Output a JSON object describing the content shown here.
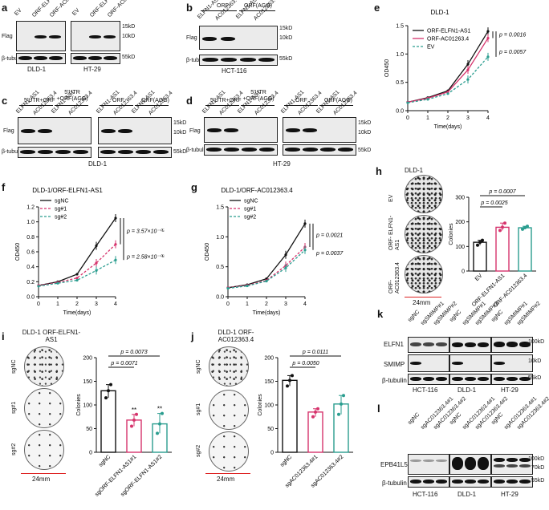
{
  "panels": {
    "a": {
      "letter": "a",
      "lanes": [
        "EV",
        "ORF-ELFN1-AS1",
        "ORF-AC012363.4",
        "EV",
        "ORF-ELFN1-AS1",
        "ORF-AC012363.4"
      ],
      "rows": [
        "Flag",
        "β-tubulin"
      ],
      "sizes": [
        "15kD",
        "10kD",
        "55kD"
      ],
      "cells": [
        "DLD-1",
        "HT-29"
      ]
    },
    "b": {
      "letter": "b",
      "groups": [
        "ORF",
        "ORF(AGG)"
      ],
      "lanes": [
        "ELFN1-AS1",
        "AC012363.4",
        "ELFN1-AS1",
        "AC012363.4"
      ],
      "rows": [
        "Flag",
        "β-tubulin"
      ],
      "sizes": [
        "15kD",
        "10kD",
        "55kD"
      ],
      "cell": "HCT-116"
    },
    "c": {
      "letter": "c",
      "groups": [
        "5'UTR+ORF",
        "5'UTR +ORF(AGG)",
        "ORF",
        "ORF(AGG)"
      ],
      "lanes": [
        "ELFN1-AS1",
        "AC012363.4",
        "ELFN1-AS1",
        "AC012363.4",
        "ELFN1-AS1",
        "AC012363.4",
        "ELFN1-AS1",
        "AC012363.4"
      ],
      "rows": [
        "Flag",
        "β-tubulin"
      ],
      "sizes": [
        "15kD",
        "10kD",
        "55kD"
      ],
      "cell": "DLD-1"
    },
    "d": {
      "letter": "d",
      "groups": [
        "5'UTR+ORF",
        "5'UTR +ORF(AGG)",
        "ORF",
        "ORF(AGG)"
      ],
      "lanes": [
        "ELFN1-AS1",
        "AC012363.4",
        "ELFN1-AS1",
        "AC012363.4",
        "ELFN1-AS1",
        "AC012363.4",
        "ELFN1-AS1",
        "AC012363.4"
      ],
      "rows": [
        "Flag",
        "β-tubulin"
      ],
      "sizes": [
        "15kD",
        "10kD",
        "55kD"
      ],
      "cell": "HT-29"
    },
    "h": {
      "letter": "h",
      "cell": "DLD-1",
      "dish_labels": [
        "EV",
        "ORF- ELFN1-AS1",
        "ORF- AC012363.4"
      ],
      "scale": "24mm"
    },
    "i": {
      "letter": "i",
      "title": "DLD-1 ORF-ELFN1-AS1",
      "dish_labels": [
        "sgNC",
        "sg#1",
        "sg#2"
      ],
      "scale": "24mm"
    },
    "j": {
      "letter": "j",
      "title": "DLD-1 ORF-AC012363.4",
      "dish_labels": [
        "sgNC",
        "sg#1",
        "sg#2"
      ],
      "scale": "24mm"
    },
    "k": {
      "letter": "k",
      "lanes": [
        "sgNC",
        "sgSMIMP#1",
        "sgSMIMP#2",
        "sgNC",
        "sgSMIMP#1",
        "sgSMIMP#2",
        "sgNC",
        "sgSMIMP#1",
        "sgSMIMP#2"
      ],
      "rows": [
        "ELFN1",
        "SMIMP",
        "β-tubulin"
      ],
      "sizes": [
        "100kD",
        "10kD",
        "55kD"
      ],
      "cells": [
        "HCT-116",
        "DLD-1",
        "HT-29"
      ]
    },
    "l": {
      "letter": "l",
      "lanes": [
        "sgNC",
        "sgAC012363.4#1",
        "sgAC012363.4#2",
        "sgNC",
        "sgAC012363.4#1",
        "sgAC012363.4#2",
        "sgNC",
        "sgAC012363.4#1",
        "sgAC012363.4#2"
      ],
      "rows": [
        "EPB41L5",
        "β-tubulin"
      ],
      "sizes": [
        "100kD",
        "70kD",
        "55kD"
      ],
      "cells": [
        "HCT-116",
        "DLD-1",
        "HT-29"
      ]
    },
    "e": {
      "letter": "e"
    },
    "f": {
      "letter": "f"
    },
    "g": {
      "letter": "g"
    }
  },
  "chart_data": [
    {
      "id": "e",
      "type": "line",
      "title": "DLD-1",
      "xlabel": "Time(days)",
      "ylabel": "OD450",
      "x": [
        0,
        1,
        2,
        3,
        4
      ],
      "xlim": [
        0,
        4
      ],
      "ylim": [
        0.0,
        1.5
      ],
      "yticks": [
        0.0,
        0.5,
        1.0,
        1.5
      ],
      "series": [
        {
          "name": "ORF-ELFN1-AS1",
          "values": [
            0.15,
            0.23,
            0.35,
            0.82,
            1.4
          ],
          "color": "#111111",
          "dash": "solid"
        },
        {
          "name": "ORF-AC01263.4",
          "values": [
            0.15,
            0.22,
            0.33,
            0.72,
            1.28
          ],
          "color": "#d6336c",
          "dash": "solid"
        },
        {
          "name": "EV",
          "values": [
            0.14,
            0.2,
            0.3,
            0.55,
            0.95
          ],
          "color": "#2a9d8f",
          "dash": "dashed"
        }
      ],
      "annotations": [
        "p = 0.0016",
        "p = 0.0057"
      ]
    },
    {
      "id": "f",
      "type": "line",
      "title": "DLD-1/ORF-ELFN1-AS1",
      "xlabel": "Time(days)",
      "ylabel": "OD450",
      "x": [
        0,
        1,
        2,
        3,
        4
      ],
      "xlim": [
        0,
        4
      ],
      "ylim": [
        0.0,
        1.2
      ],
      "yticks": [
        0.0,
        0.2,
        0.4,
        0.6,
        0.8,
        1.0,
        1.2
      ],
      "series": [
        {
          "name": "sgNC",
          "values": [
            0.15,
            0.2,
            0.3,
            0.68,
            1.05
          ],
          "color": "#111111",
          "dash": "solid"
        },
        {
          "name": "sg#1",
          "values": [
            0.15,
            0.19,
            0.25,
            0.45,
            0.7
          ],
          "color": "#d6336c",
          "dash": "dashed"
        },
        {
          "name": "sg#2",
          "values": [
            0.14,
            0.18,
            0.22,
            0.35,
            0.49
          ],
          "color": "#2a9d8f",
          "dash": "dashed"
        }
      ],
      "annotations": [
        "p = 3.57×10⁻⁰⁵",
        "p = 2.58×10⁻⁰⁶"
      ]
    },
    {
      "id": "g",
      "type": "line",
      "title": "DLD-1/ORF-AC012363.4",
      "xlabel": "Time(days)",
      "ylabel": "OD450",
      "x": [
        0,
        1,
        2,
        3,
        4
      ],
      "xlim": [
        0,
        4
      ],
      "ylim": [
        0.0,
        1.5
      ],
      "yticks": [
        0.0,
        0.5,
        1.0,
        1.5
      ],
      "series": [
        {
          "name": "sgNC",
          "values": [
            0.15,
            0.2,
            0.3,
            0.7,
            1.22
          ],
          "color": "#111111",
          "dash": "solid"
        },
        {
          "name": "sg#1",
          "values": [
            0.15,
            0.19,
            0.27,
            0.52,
            0.83
          ],
          "color": "#d6336c",
          "dash": "dashed"
        },
        {
          "name": "sg#2",
          "values": [
            0.14,
            0.18,
            0.26,
            0.48,
            0.78
          ],
          "color": "#2a9d8f",
          "dash": "dashed"
        }
      ],
      "annotations": [
        "p = 0.0021",
        "p = 0.0037"
      ]
    },
    {
      "id": "h",
      "type": "bar",
      "xlabel": "",
      "ylabel": "Colonies",
      "categories": [
        "EV",
        "ORF-ELFN1-AS1",
        "ORF-AC012363.4"
      ],
      "values": [
        117,
        178,
        176
      ],
      "colors": [
        "#111111",
        "#d6336c",
        "#2a9d8f"
      ],
      "points": [
        [
          105,
          117,
          125
        ],
        [
          165,
          178,
          195
        ],
        [
          170,
          176,
          182
        ]
      ],
      "ylim": [
        0,
        300
      ],
      "yticks": [
        0,
        100,
        200,
        300
      ],
      "annotations": [
        "p = 0.0007",
        "p = 0.0025"
      ]
    },
    {
      "id": "i",
      "type": "bar",
      "xlabel": "",
      "ylabel": "Colonies",
      "categories": [
        "sgNC",
        "sgORF-ELFN1-AS1#1",
        "sgORF-ELFN1-AS1#2"
      ],
      "values": [
        130,
        68,
        60
      ],
      "colors": [
        "#111111",
        "#d6336c",
        "#2a9d8f"
      ],
      "points": [
        [
          115,
          130,
          143
        ],
        [
          55,
          68,
          80
        ],
        [
          40,
          60,
          82
        ]
      ],
      "ylim": [
        0,
        200
      ],
      "yticks": [
        0,
        50,
        100,
        150,
        200
      ],
      "stars": [
        "",
        "**",
        "**"
      ],
      "annotations": [
        "p = 0.0073",
        "p = 0.0071"
      ]
    },
    {
      "id": "j",
      "type": "bar",
      "xlabel": "",
      "ylabel": "Colonies",
      "categories": [
        "sgNC",
        "sgAC012363.4#1",
        "sgAC012363.4#2"
      ],
      "values": [
        152,
        85,
        102
      ],
      "colors": [
        "#111111",
        "#d6336c",
        "#2a9d8f"
      ],
      "points": [
        [
          140,
          152,
          162
        ],
        [
          75,
          85,
          92
        ],
        [
          80,
          102,
          120
        ]
      ],
      "ylim": [
        0,
        200
      ],
      "yticks": [
        0,
        50,
        100,
        150,
        200
      ],
      "annotations": [
        "p = 0.0111",
        "p = 0.0050"
      ]
    }
  ]
}
